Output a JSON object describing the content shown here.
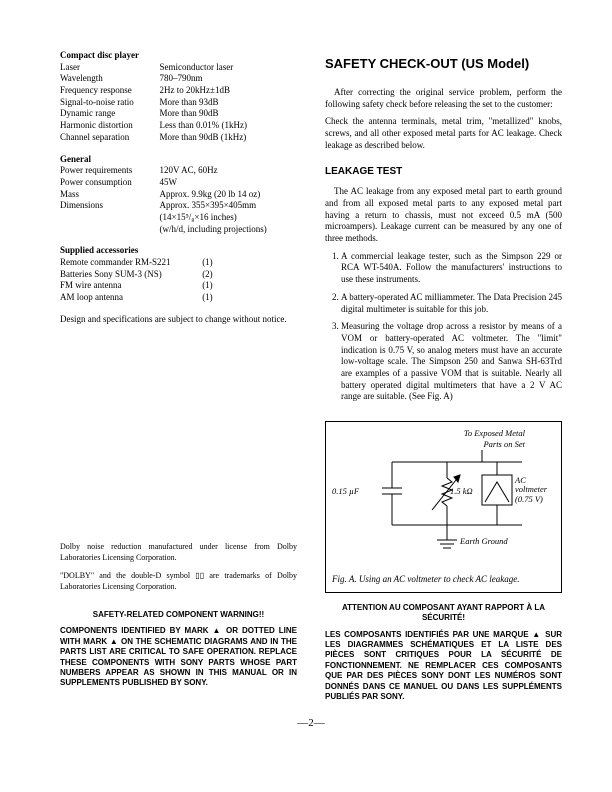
{
  "left": {
    "h_cd": "Compact disc player",
    "cd_rows": [
      [
        "Laser",
        "Semiconductor laser"
      ],
      [
        "Wavelength",
        "780–790nm"
      ],
      [
        "Frequency response",
        "2Hz to 20kHz±1dB"
      ],
      [
        "Signal-to-noise ratio",
        "More than 93dB"
      ],
      [
        "Dynamic range",
        "More than 90dB"
      ],
      [
        "Harmonic distortion",
        "Less than 0.01% (1kHz)"
      ],
      [
        "Channel separation",
        "More than 90dB (1kHz)"
      ]
    ],
    "h_gen": "General",
    "gen_rows": [
      [
        "Power requirements",
        "120V AC, 60Hz"
      ],
      [
        "Power consumption",
        "45W"
      ],
      [
        "Mass",
        "Approx. 9.9kg (20 lb 14 oz)"
      ],
      [
        "Dimensions",
        "Approx. 355×395×405mm"
      ]
    ],
    "gen_extra": [
      "(14×15⁵/₈×16 inches)",
      "(w/h/d, including projections)"
    ],
    "h_acc": "Supplied accessories",
    "acc_rows": [
      [
        "Remote commander RM-S221",
        "(1)"
      ],
      [
        "Batteries Sony SUM-3 (NS)",
        "(2)"
      ],
      [
        "FM wire antenna",
        "(1)"
      ],
      [
        "AM loop antenna",
        "(1)"
      ]
    ],
    "notice": "Design and specifications are subject to change without notice.",
    "dolby1": "Dolby noise reduction manufactured under license from Dolby Laboratories Licensing Corporation.",
    "dolby2": "\"DOLBY\" and the double-D symbol ▯▯ are trademarks of Dolby Laboratories Licensing Corporation.",
    "warn_h": "SAFETY-RELATED COMPONENT WARNING!!",
    "warn_b": "COMPONENTS IDENTIFIED BY MARK ▲ OR DOTTED LINE WITH MARK ▲ ON THE SCHEMATIC DIAGRAMS AND IN THE PARTS LIST ARE CRITICAL TO SAFE OPERATION. REPLACE THESE COMPONENTS WITH SONY PARTS WHOSE PART NUMBERS APPEAR AS SHOWN IN THIS MANUAL OR IN SUPPLEMENTS PUBLISHED BY SONY."
  },
  "right": {
    "h1": "SAFETY CHECK-OUT (US Model)",
    "p1": "After correcting the original service problem, perform the following safety check before releasing the set to the customer:",
    "p2": "Check the antenna terminals, metal trim, \"metallized\" knobs, screws, and all other exposed metal parts for AC leakage. Check leakage as described below.",
    "h2": "LEAKAGE TEST",
    "p3": "The AC leakage from any exposed metal part to earth ground and from all exposed metal parts to any exposed metal part having a return to chassis, must not exceed 0.5 mA (500 microampers). Leakage current can be measured by any one of three methods.",
    "m1": "A commercial leakage tester, such as the Simpson 229 or RCA WT-540A. Follow the manufacturers' instructions to use these instruments.",
    "m2": "A battery-operated AC milliammeter. The Data Precision 245 digital multimeter is suitable for this job.",
    "m3": "Measuring the voltage drop across a resistor by means of a VOM or battery-operated AC voltmeter. The \"limit\" indication is 0.75 V, so analog meters must have an accurate low-voltage scale. The Simpson 250 and Sanwa SH-63Trd are examples of a passive VOM that is suitable. Nearly all battery operated digital multimeters that have a 2 V AC range are suitable. (See Fig. A)",
    "fig_top": "To Exposed Metal\nParts on Set",
    "fig_cap_label": "0.15 µF",
    "fig_res_label": "1.5 kΩ",
    "fig_meter1": "AC",
    "fig_meter2": "voltmeter",
    "fig_meter3": "(0.75 V)",
    "fig_ground": "Earth Ground",
    "fig_caption": "Fig. A.  Using an AC voltmeter to check AC leakage.",
    "warn2_h": "ATTENTION AU COMPOSANT AYANT RAPPORT À LA SÉCURITÉ!",
    "warn2_b": "LES COMPOSANTS IDENTIFIÉS PAR UNE MARQUE ▲ SUR LES DIAGRAMMES SCHÉMATIQUES ET LA LISTE DES PIÈCES SONT CRITIQUES POUR LA SÉCURITÉ DE FONCTIONNEMENT. NE REMPLACER CES COMPOSANTS QUE PAR DES PIÈCES SONY DONT LES NUMÉROS SONT DONNÉS DANS CE MANUEL OU DANS LES SUPPLÉMENTS PUBLIÉS PAR SONY."
  },
  "page": "—2—"
}
